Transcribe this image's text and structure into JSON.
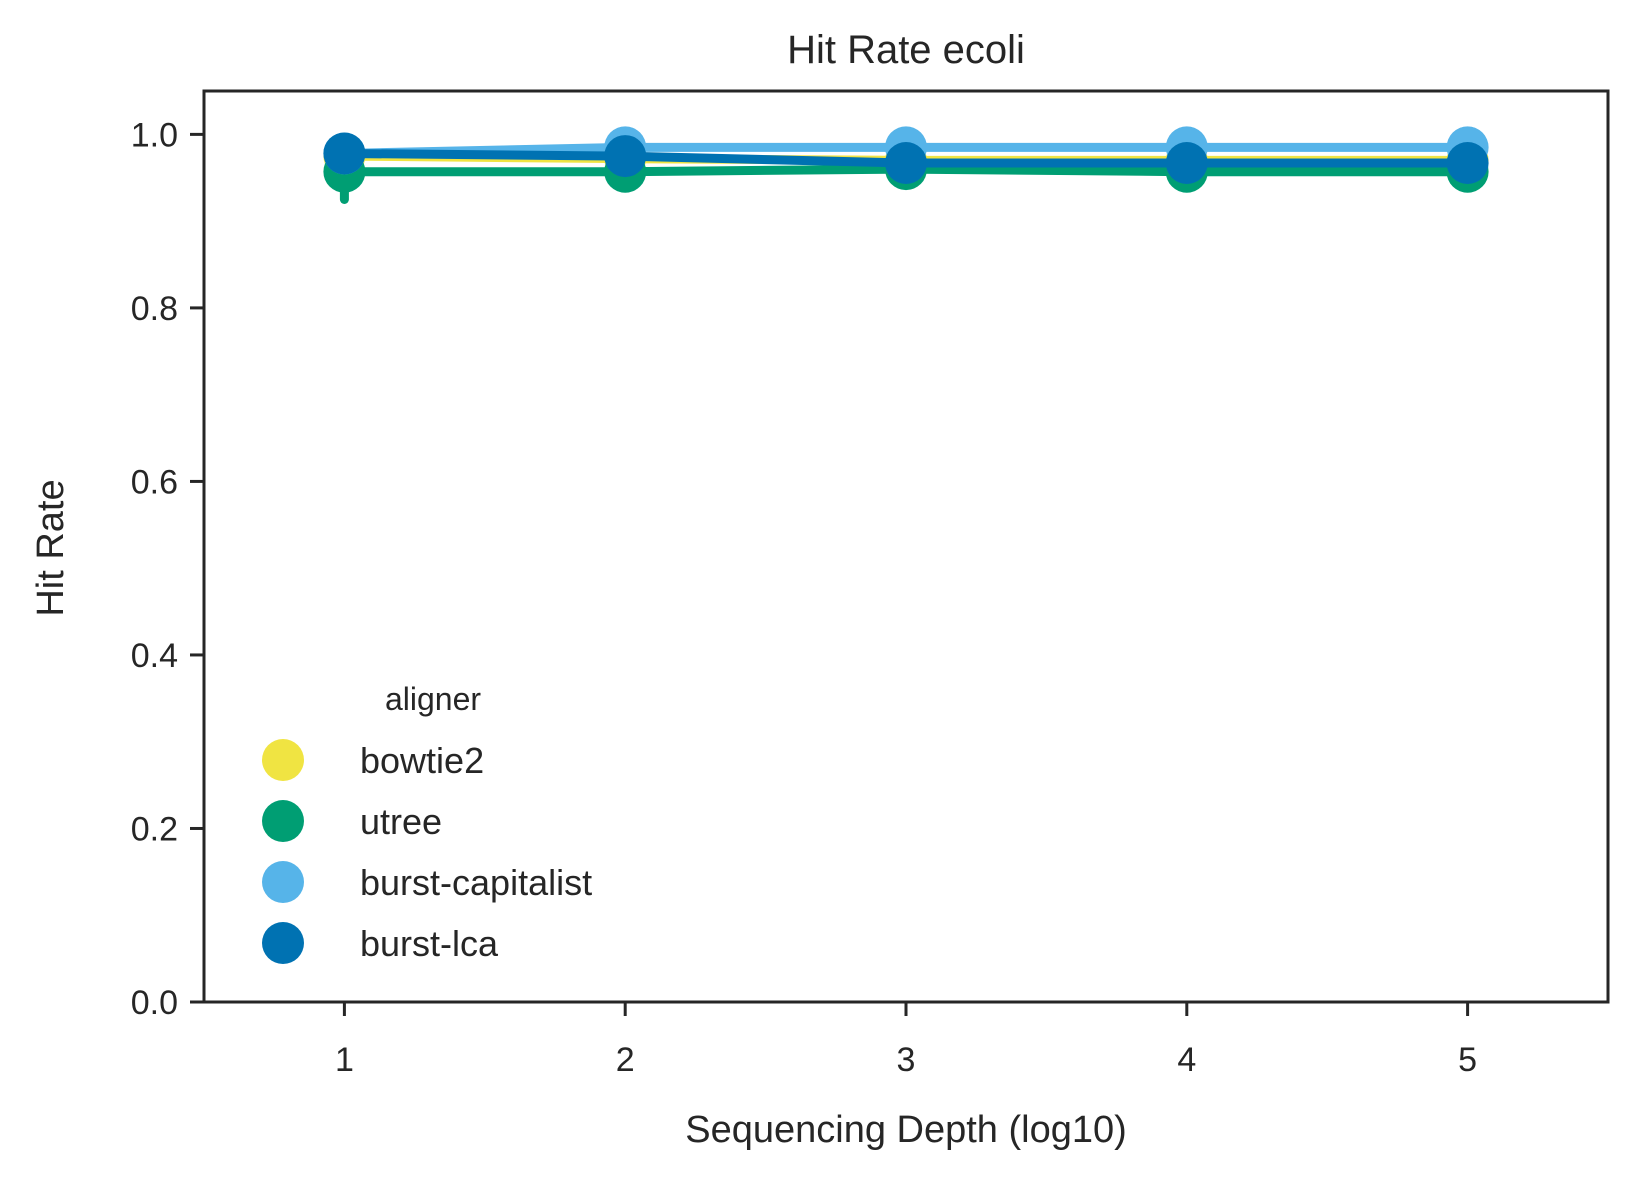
{
  "chart_data": {
    "type": "line",
    "title": "Hit Rate ecoli",
    "xlabel": "Sequencing Depth (log10)",
    "ylabel": "Hit Rate",
    "x": [
      1,
      2,
      3,
      4,
      5
    ],
    "xlim": [
      0.5,
      5.5
    ],
    "ylim": [
      0.0,
      1.05
    ],
    "x_ticks": [
      {
        "value": 1,
        "label": "1"
      },
      {
        "value": 2,
        "label": "2"
      },
      {
        "value": 3,
        "label": "3"
      },
      {
        "value": 4,
        "label": "4"
      },
      {
        "value": 5,
        "label": "5"
      }
    ],
    "y_ticks": [
      {
        "value": 0.0,
        "label": "0.0"
      },
      {
        "value": 0.2,
        "label": "0.2"
      },
      {
        "value": 0.4,
        "label": "0.4"
      },
      {
        "value": 0.6,
        "label": "0.6"
      },
      {
        "value": 0.8,
        "label": "0.8"
      },
      {
        "value": 1.0,
        "label": "1.0"
      }
    ],
    "grid": false,
    "legend": {
      "title": "aligner",
      "placement": "lower-left"
    },
    "series": [
      {
        "name": "bowtie2",
        "color": "#f0e442",
        "values": [
          0.975,
          0.972,
          0.97,
          0.97,
          0.97
        ],
        "err_low": [
          null,
          null,
          null,
          null,
          null
        ],
        "err_high": [
          null,
          null,
          null,
          null,
          null
        ]
      },
      {
        "name": "utree",
        "color": "#009e73",
        "values": [
          0.957,
          0.957,
          0.96,
          0.957,
          0.957
        ],
        "err_low": [
          0.925,
          null,
          null,
          null,
          null
        ],
        "err_high": [
          0.975,
          null,
          null,
          null,
          null
        ]
      },
      {
        "name": "burst-capitalist",
        "color": "#56b4e9",
        "values": [
          0.978,
          0.985,
          0.985,
          0.985,
          0.985
        ],
        "err_low": [
          null,
          null,
          null,
          null,
          null
        ],
        "err_high": [
          null,
          null,
          null,
          null,
          null
        ]
      },
      {
        "name": "burst-lca",
        "color": "#0072b2",
        "values": [
          0.978,
          0.975,
          0.967,
          0.967,
          0.967
        ],
        "err_low": [
          null,
          null,
          null,
          null,
          null
        ],
        "err_high": [
          null,
          null,
          null,
          null,
          null
        ]
      }
    ]
  }
}
